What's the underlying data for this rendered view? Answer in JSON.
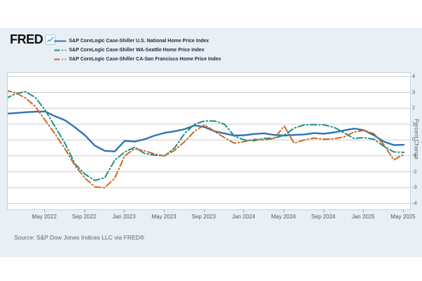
{
  "brand": {
    "logo_text": "FRED",
    "logo_icon": "line-chart-icon"
  },
  "legend": {
    "items": [
      {
        "label": "S&P CoreLogic Case-Shiller U.S. National Home Price Index",
        "color": "#2f73b4",
        "style": "solid"
      },
      {
        "label": "S&P CoreLogic Case-Shiller WA-Seattle Home Price Index",
        "color": "#1d9186",
        "style": "dash-dot"
      },
      {
        "label": "S&P CoreLogic Case-Shiller CA-San Francisco Home Price Index",
        "color": "#c96a28",
        "style": "dash-dot"
      }
    ]
  },
  "y_axis": {
    "title": "Percent Change",
    "ticks": [
      4,
      3,
      2,
      1,
      0,
      -1,
      -2,
      -3,
      -4
    ],
    "min": -4,
    "max": 4
  },
  "x_axis": {
    "tick_labels": [
      "May 2022",
      "Sep 2022",
      "Jan 2023",
      "May 2023",
      "Sep 2023",
      "Jan 2024",
      "May 2024",
      "Sep 2024",
      "Jan 2025",
      "May 2025"
    ]
  },
  "source": "Source: S&P Dow Jones Indices LLC via FRED®",
  "chart_data": {
    "type": "line",
    "title": "",
    "xlabel": "",
    "ylabel": "Percent Change",
    "ylim": [
      -4,
      4
    ],
    "grid": "horizontal",
    "legend_position": "top-left",
    "x": [
      "Jan 2022",
      "Feb 2022",
      "Mar 2022",
      "Apr 2022",
      "May 2022",
      "Jun 2022",
      "Jul 2022",
      "Aug 2022",
      "Sep 2022",
      "Oct 2022",
      "Nov 2022",
      "Dec 2022",
      "Jan 2023",
      "Feb 2023",
      "Mar 2023",
      "Apr 2023",
      "May 2023",
      "Jun 2023",
      "Jul 2023",
      "Aug 2023",
      "Sep 2023",
      "Oct 2023",
      "Nov 2023",
      "Dec 2023",
      "Jan 2024",
      "Feb 2024",
      "Mar 2024",
      "Apr 2024",
      "May 2024",
      "Jun 2024",
      "Jul 2024",
      "Aug 2024",
      "Sep 2024",
      "Oct 2024",
      "Nov 2024",
      "Dec 2024",
      "Jan 2025",
      "Feb 2025",
      "Mar 2025",
      "Apr 2025",
      "May 2025"
    ],
    "x_tick_labels": [
      "May 2022",
      "Sep 2022",
      "Jan 2023",
      "May 2023",
      "Sep 2023",
      "Jan 2024",
      "May 2024",
      "Sep 2024",
      "Jan 2025",
      "May 2025"
    ],
    "series": [
      {
        "name": "S&P CoreLogic Case-Shiller U.S. National Home Price Index",
        "color": "#2f73b4",
        "dash": "solid",
        "values": [
          1.65,
          1.7,
          1.75,
          1.78,
          1.8,
          1.5,
          1.25,
          0.8,
          0.3,
          -0.35,
          -0.68,
          -0.72,
          -0.05,
          -0.1,
          0.05,
          0.28,
          0.45,
          0.55,
          0.68,
          0.92,
          0.82,
          0.55,
          0.42,
          0.28,
          0.3,
          0.38,
          0.42,
          0.32,
          0.28,
          0.32,
          0.35,
          0.44,
          0.4,
          0.48,
          0.6,
          0.72,
          0.62,
          0.3,
          -0.1,
          -0.32,
          -0.3
        ]
      },
      {
        "name": "S&P CoreLogic Case-Shiller WA-Seattle Home Price Index",
        "color": "#1d9186",
        "dash": "dash-dot",
        "values": [
          2.6,
          2.9,
          3.05,
          2.7,
          1.9,
          0.85,
          -0.2,
          -1.5,
          -2.15,
          -2.55,
          -2.37,
          -1.27,
          -0.75,
          -0.45,
          -0.85,
          -0.95,
          -1.0,
          -0.5,
          0.4,
          1.0,
          1.2,
          1.2,
          1.0,
          0.25,
          0.0,
          -0.05,
          0.1,
          0.12,
          0.3,
          0.75,
          0.95,
          0.97,
          0.95,
          0.8,
          0.45,
          0.1,
          0.15,
          0.05,
          -0.4,
          -0.75,
          -0.78
        ]
      },
      {
        "name": "S&P CoreLogic Case-Shiller CA-San Francisco Home Price Index",
        "color": "#c96a28",
        "dash": "dash-dot",
        "values": [
          3.15,
          2.98,
          2.67,
          2.13,
          1.25,
          0.4,
          -0.55,
          -1.6,
          -2.4,
          -2.95,
          -3.0,
          -2.4,
          -1.0,
          -0.55,
          -0.68,
          -0.88,
          -1.0,
          -0.65,
          -0.1,
          0.55,
          0.95,
          0.55,
          0.15,
          -0.2,
          -0.1,
          0.05,
          0.0,
          0.1,
          0.88,
          -0.2,
          0.0,
          0.12,
          0.05,
          0.08,
          0.2,
          0.5,
          0.6,
          0.4,
          -0.3,
          -1.25,
          -0.9
        ]
      }
    ]
  }
}
